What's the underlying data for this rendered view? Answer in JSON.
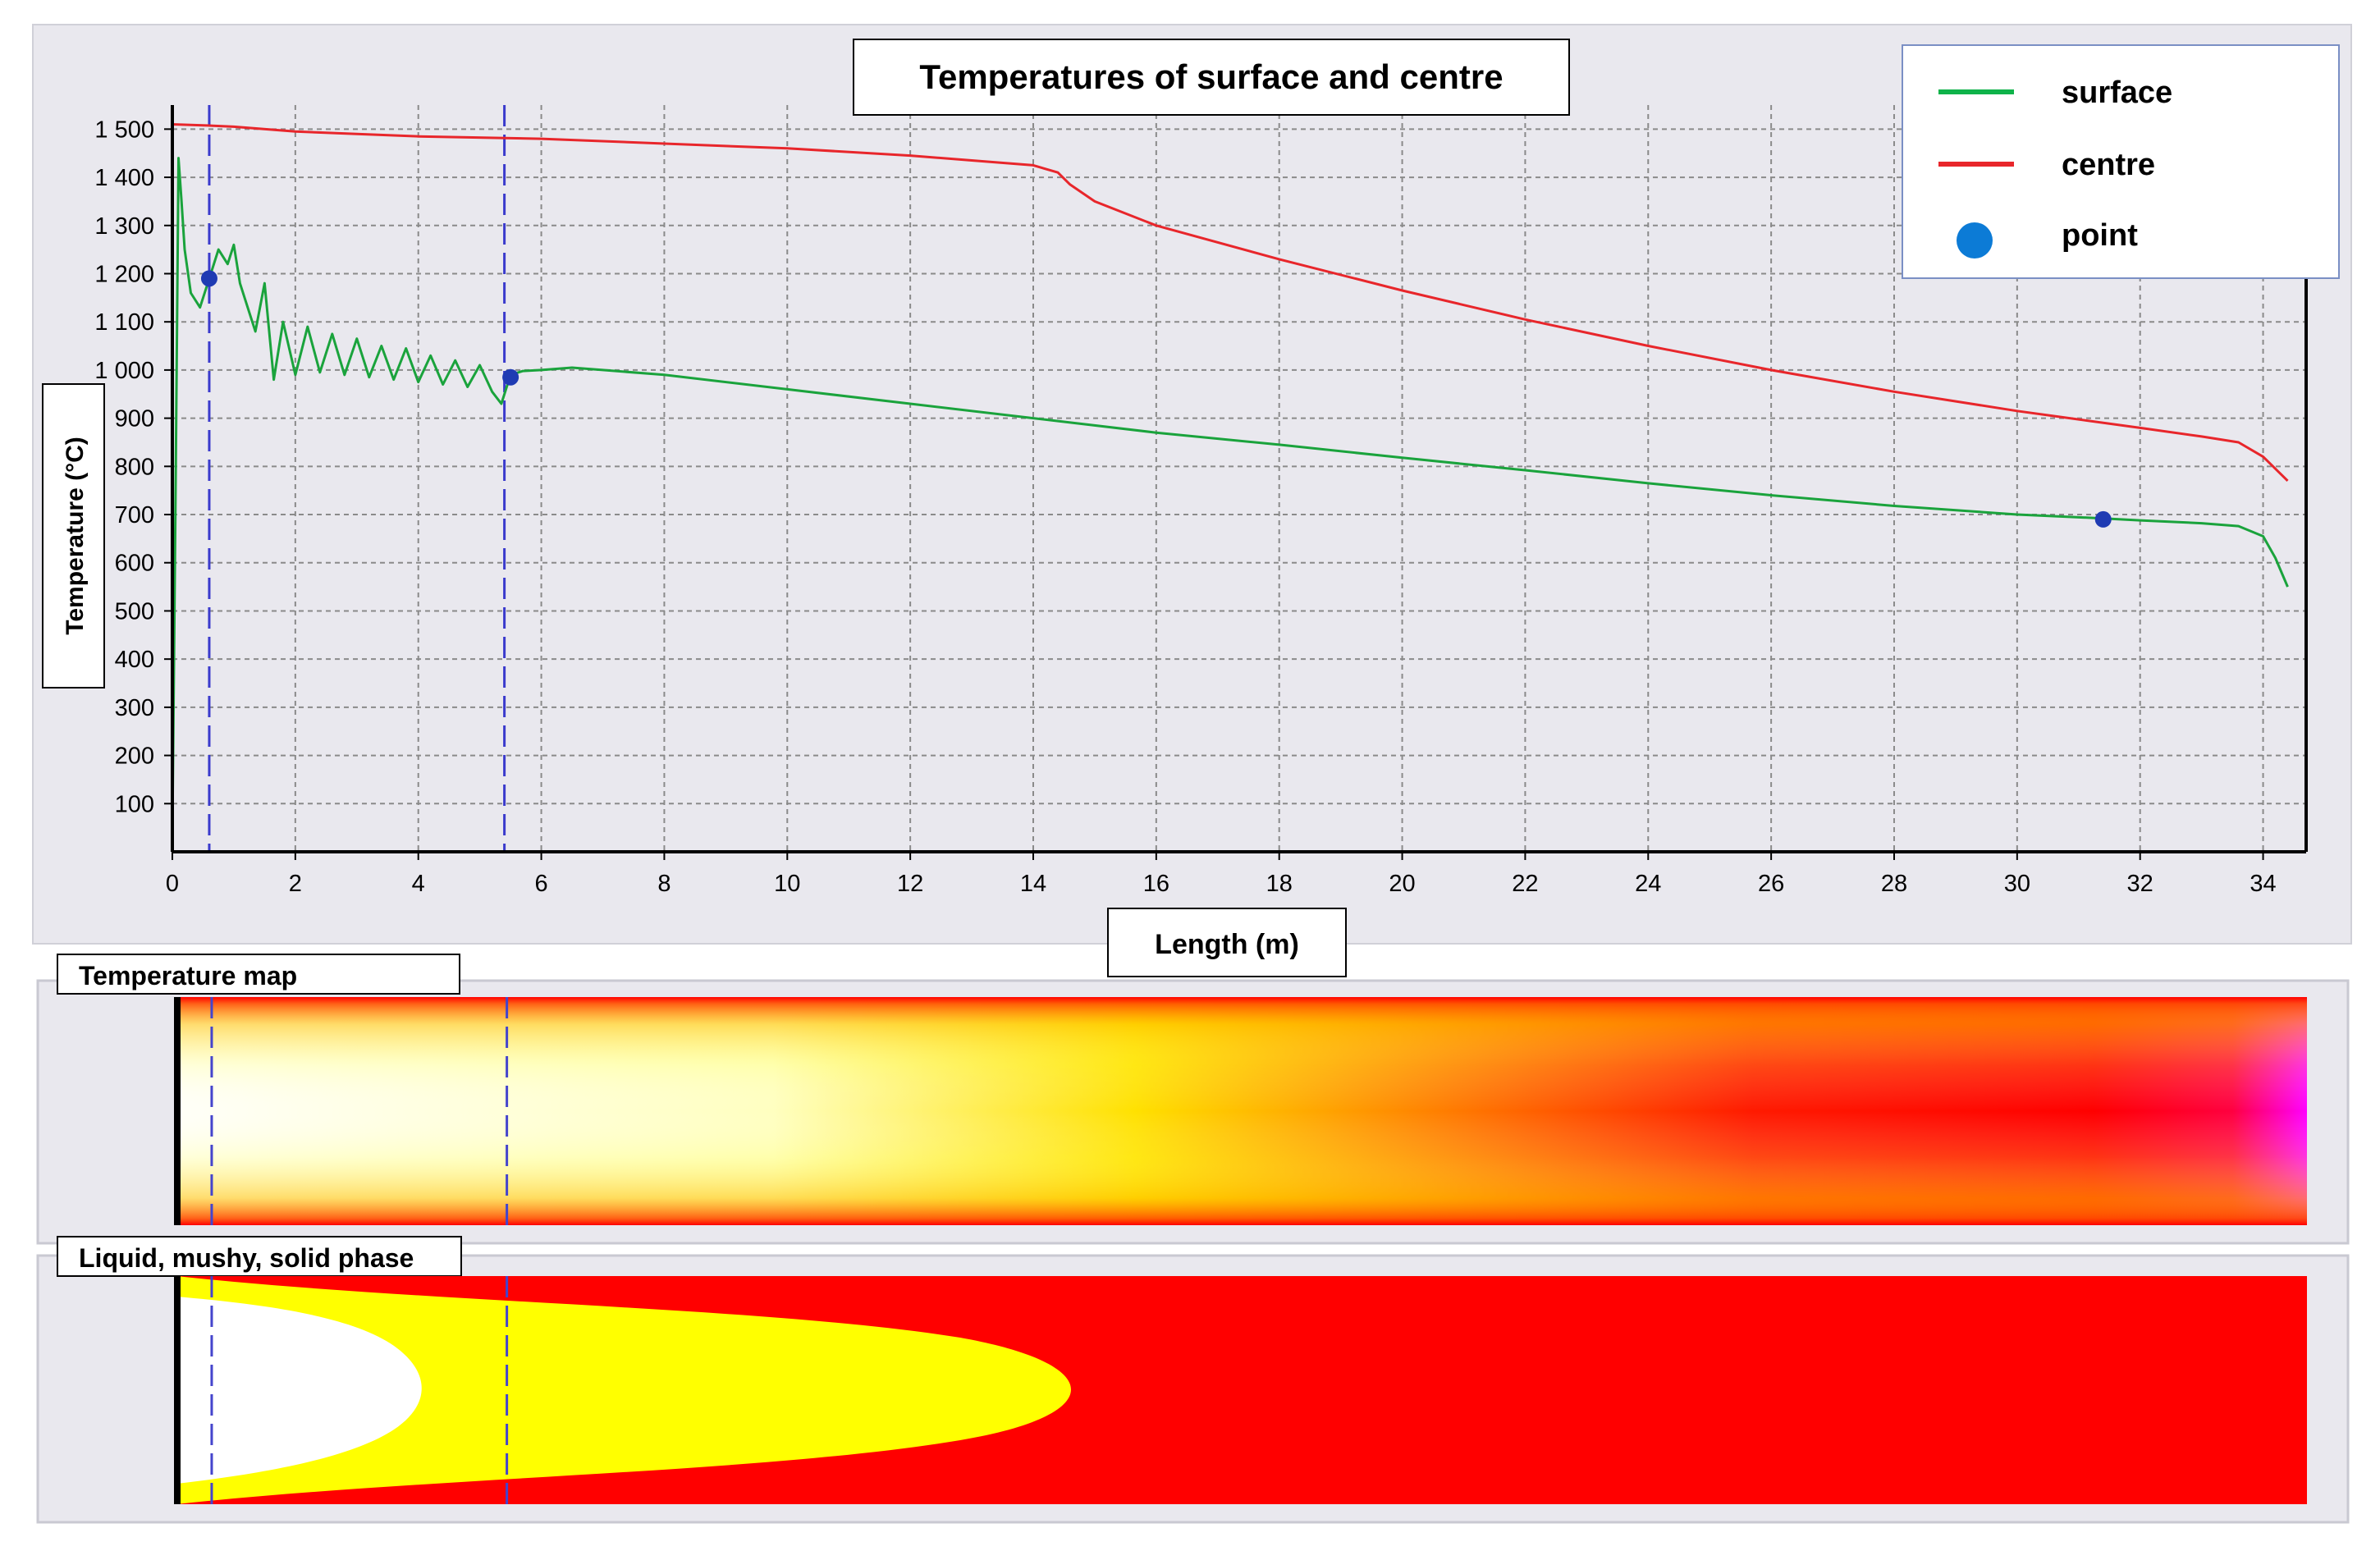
{
  "chart_data": {
    "type": "line",
    "title": "Temperatures of surface and centre",
    "xlabel": "Length (m)",
    "ylabel": "Temperature (°C)",
    "xlim": [
      0,
      34.7
    ],
    "ylim": [
      0,
      1550
    ],
    "xticks": [
      0,
      2,
      4,
      6,
      8,
      10,
      12,
      14,
      16,
      18,
      20,
      22,
      24,
      26,
      28,
      30,
      32,
      34
    ],
    "yticks": [
      100,
      200,
      300,
      400,
      500,
      600,
      700,
      800,
      900,
      1000,
      1100,
      1200,
      1300,
      1400,
      1500
    ],
    "ytick_labels": [
      "100",
      "200",
      "300",
      "400",
      "500",
      "600",
      "700",
      "800",
      "900",
      "1 000",
      "1 100",
      "1 200",
      "1 300",
      "1 400",
      "1 500"
    ],
    "grid": true,
    "vlines": [
      0.6,
      5.4
    ],
    "series": [
      {
        "name": "surface",
        "color": "#1aa33c",
        "x": [
          0,
          0.05,
          0.1,
          0.15,
          0.2,
          0.3,
          0.45,
          0.6,
          0.75,
          0.9,
          1.0,
          1.1,
          1.2,
          1.35,
          1.5,
          1.65,
          1.8,
          2.0,
          2.2,
          2.4,
          2.6,
          2.8,
          3.0,
          3.2,
          3.4,
          3.6,
          3.8,
          4.0,
          4.2,
          4.4,
          4.6,
          4.8,
          5.0,
          5.2,
          5.35,
          5.5,
          5.7,
          6.0,
          6.5,
          7.0,
          8,
          10,
          12,
          14,
          16,
          18,
          20,
          22,
          24,
          26,
          28,
          30,
          31.4,
          32,
          33,
          33.6,
          34.0,
          34.2,
          34.4
        ],
        "values": [
          30,
          700,
          1440,
          1350,
          1250,
          1160,
          1130,
          1190,
          1250,
          1220,
          1260,
          1180,
          1140,
          1080,
          1180,
          980,
          1100,
          990,
          1090,
          995,
          1075,
          990,
          1065,
          985,
          1050,
          980,
          1045,
          975,
          1030,
          970,
          1020,
          965,
          1010,
          955,
          930,
          990,
          998,
          1000,
          1005,
          1000,
          990,
          960,
          930,
          900,
          870,
          845,
          818,
          792,
          765,
          740,
          718,
          700,
          692,
          688,
          682,
          676,
          655,
          610,
          550
        ]
      },
      {
        "name": "centre",
        "color": "#e8262b",
        "x": [
          0,
          0.5,
          1,
          2,
          3,
          4,
          6,
          8,
          10,
          12,
          13,
          14,
          14.4,
          14.6,
          15,
          16,
          18,
          20,
          22,
          24,
          26,
          28,
          30,
          32,
          33,
          33.6,
          34.0,
          34.4
        ],
        "values": [
          1510,
          1508,
          1505,
          1495,
          1490,
          1485,
          1480,
          1470,
          1460,
          1445,
          1435,
          1425,
          1410,
          1385,
          1350,
          1300,
          1230,
          1165,
          1105,
          1050,
          1000,
          955,
          915,
          880,
          862,
          850,
          820,
          770
        ]
      },
      {
        "name": "point",
        "color": "#1f3bb3",
        "x": [
          0.6,
          5.5,
          31.4
        ],
        "values": [
          1190,
          985,
          690
        ]
      }
    ],
    "legend": {
      "position": "top-right",
      "entries": [
        {
          "label": "surface",
          "color": "#0fb34a",
          "kind": "line"
        },
        {
          "label": "centre",
          "color": "#e8262b",
          "kind": "line"
        },
        {
          "label": "point",
          "color": "#0c7bd6",
          "kind": "dot"
        }
      ]
    }
  },
  "panels": {
    "temperature_map": {
      "title": "Temperature map"
    },
    "phase_map": {
      "title": "Liquid, mushy, solid phase"
    }
  },
  "colors": {
    "panel_bg": "#e8e8ee",
    "grid": "#8a8a8a",
    "guide_lines": "#3a3acc",
    "hot": "#ffffff",
    "warm": "#ffff00",
    "mid": "#ffa000",
    "cool": "#ff0000",
    "coldest": "#ff00ff"
  }
}
